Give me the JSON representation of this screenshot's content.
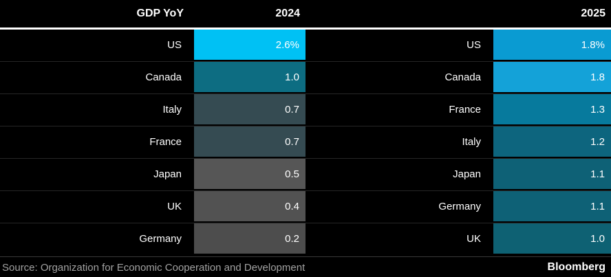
{
  "header": {
    "title": "GDP YoY",
    "col_2024": "2024",
    "col_2025": "2025"
  },
  "footer": {
    "source": "Source: Organization for Economic Cooperation and Development",
    "brand": "Bloomberg"
  },
  "chart_data": {
    "type": "heatmap",
    "title": "GDP YoY",
    "columns": [
      "2024",
      "2025"
    ],
    "value_unit": "percent",
    "color_scale_hint": "high values bright cyan, mid values teal, low values gray",
    "tables": [
      {
        "year": "2024",
        "rows": [
          {
            "country": "US",
            "value": "2.6%",
            "color": "#00c1f4"
          },
          {
            "country": "Canada",
            "value": "1.0",
            "color": "#0d6d82"
          },
          {
            "country": "Italy",
            "value": "0.7",
            "color": "#354b52"
          },
          {
            "country": "France",
            "value": "0.7",
            "color": "#354b52"
          },
          {
            "country": "Japan",
            "value": "0.5",
            "color": "#565656"
          },
          {
            "country": "UK",
            "value": "0.4",
            "color": "#525252"
          },
          {
            "country": "Germany",
            "value": "0.2",
            "color": "#4d4d4d"
          }
        ]
      },
      {
        "year": "2025",
        "rows": [
          {
            "country": "US",
            "value": "1.8%",
            "color": "#0a9bd2"
          },
          {
            "country": "Canada",
            "value": "1.8",
            "color": "#14a2d8"
          },
          {
            "country": "France",
            "value": "1.3",
            "color": "#077a9d"
          },
          {
            "country": "Italy",
            "value": "1.2",
            "color": "#0d657e"
          },
          {
            "country": "Japan",
            "value": "1.1",
            "color": "#0e6176"
          },
          {
            "country": "Germany",
            "value": "1.1",
            "color": "#0e6176"
          },
          {
            "country": "UK",
            "value": "1.0",
            "color": "#0e6173"
          }
        ]
      }
    ]
  }
}
